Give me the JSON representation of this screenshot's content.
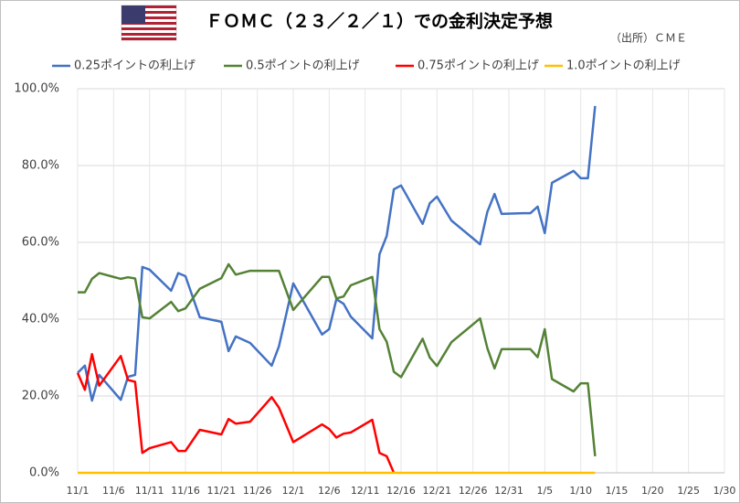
{
  "chart_data": {
    "type": "line",
    "title": "ＦＯＭＣ（２３／２／１）での金利決定予想",
    "subtitle": "（出所）ＣＭＥ",
    "x": [
      "11/1",
      "11/2",
      "11/3",
      "11/4",
      "11/7",
      "11/8",
      "11/9",
      "11/10",
      "11/11",
      "11/14",
      "11/15",
      "11/16",
      "11/18",
      "11/21",
      "11/22",
      "11/23",
      "11/25",
      "11/28",
      "11/29",
      "12/1",
      "12/5",
      "12/6",
      "12/7",
      "12/8",
      "12/9",
      "12/12",
      "12/13",
      "12/14",
      "12/15",
      "12/16",
      "12/19",
      "12/20",
      "12/21",
      "12/23",
      "12/27",
      "12/28",
      "12/29",
      "12/30",
      "1/2",
      "1/3",
      "1/4",
      "1/5",
      "1/6",
      "1/9",
      "1/10",
      "1/11",
      "1/12"
    ],
    "series": [
      {
        "name": "0.25ポイントの利上げ",
        "color": "#4472c4",
        "values": [
          26,
          27.9,
          18.8,
          25.5,
          19,
          25,
          25.5,
          53.6,
          52.9,
          47.4,
          52,
          51.2,
          40.5,
          39.3,
          31.7,
          35.5,
          33.8,
          27.9,
          32.9,
          49.3,
          36,
          37.4,
          45.2,
          44,
          40.7,
          35,
          56.9,
          61.7,
          73.8,
          74.8,
          64.8,
          70.2,
          71.9,
          65.7,
          59.5,
          67.9,
          72.6,
          67.4,
          67.6,
          67.6,
          69.3,
          62.4,
          75.5,
          78.6,
          76.7,
          76.7,
          95.5
        ]
      },
      {
        "name": "0.5ポイントの利上げ",
        "color": "#548235",
        "values": [
          47,
          47,
          50.5,
          52,
          50.5,
          50.9,
          50.6,
          40.5,
          40.2,
          44.5,
          42.1,
          42.8,
          47.9,
          50.7,
          54.3,
          51.6,
          52.6,
          52.6,
          52.6,
          42.4,
          51,
          51,
          45.4,
          45.9,
          48.8,
          51,
          37.4,
          34.1,
          26.3,
          24.9,
          34.9,
          30,
          27.8,
          34,
          40.2,
          32.5,
          27.2,
          32.2,
          32.2,
          32.2,
          30.1,
          37.4,
          24.4,
          21.2,
          23.3,
          23.3,
          4.3
        ]
      },
      {
        "name": "0.75ポイントの利上げ",
        "color": "#ff0000",
        "values": [
          26,
          21.6,
          30.9,
          22.7,
          30.4,
          24.2,
          23.7,
          5.2,
          6.4,
          8,
          5.7,
          5.7,
          11.2,
          10,
          14,
          12.8,
          13.3,
          19.7,
          17,
          8,
          12.6,
          11.4,
          9.2,
          10.2,
          10.5,
          13.8,
          5.2,
          4.3,
          0,
          null,
          null,
          null,
          null,
          null,
          null,
          null,
          null,
          null,
          null,
          null,
          null,
          null,
          null,
          null,
          null,
          null,
          null
        ]
      },
      {
        "name": "1.0ポイントの利上げ",
        "color": "#ffc000",
        "values": [
          0,
          0,
          0,
          0,
          0,
          0,
          0,
          0,
          0,
          0,
          0,
          0,
          0,
          0,
          0,
          0,
          0,
          0,
          0,
          0,
          0,
          0,
          0,
          0,
          0,
          0,
          0,
          0,
          0,
          0,
          0,
          0,
          0,
          0,
          0,
          0,
          0,
          0,
          0,
          0,
          0,
          0,
          0,
          0,
          0,
          0,
          0
        ]
      }
    ],
    "xlim": [
      "11/1",
      "1/30"
    ],
    "xticks": [
      "11/1",
      "11/6",
      "11/11",
      "11/16",
      "11/21",
      "11/26",
      "12/1",
      "12/6",
      "12/11",
      "12/16",
      "12/21",
      "12/26",
      "12/31",
      "1/5",
      "1/10",
      "1/15",
      "1/20",
      "1/25",
      "1/30"
    ],
    "ylim": [
      0,
      100
    ],
    "yticks": [
      {
        "value": 0,
        "label": "0.0%"
      },
      {
        "value": 20,
        "label": "20.0%"
      },
      {
        "value": 40,
        "label": "40.0%"
      },
      {
        "value": 60,
        "label": "60.0%"
      },
      {
        "value": 80,
        "label": "80.0%"
      },
      {
        "value": 100,
        "label": "100.0%"
      }
    ],
    "grid": true
  }
}
